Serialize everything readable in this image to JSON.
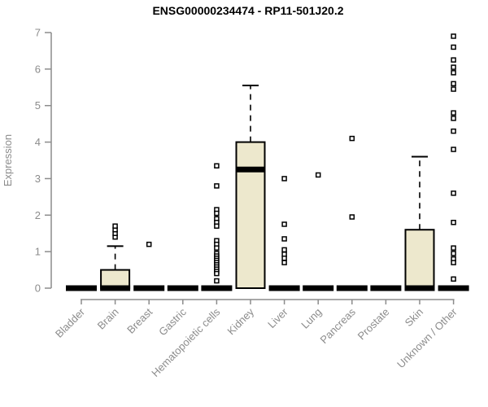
{
  "title": "ENSG00000234474 - RP11-501J20.2",
  "chart_data": {
    "type": "boxplot",
    "title": "ENSG00000234474 - RP11-501J20.2",
    "xlabel": "",
    "ylabel": "Expression",
    "ylim": [
      0,
      7
    ],
    "yticks": [
      0,
      1,
      2,
      3,
      4,
      5,
      6,
      7
    ],
    "grid": false,
    "legend_position": "none",
    "categories": [
      "Bladder",
      "Brain",
      "Breast",
      "Gastric",
      "Hematopoietic cells",
      "Kidney",
      "Liver",
      "Lung",
      "Pancreas",
      "Prostate",
      "Skin",
      "Unknown / Other"
    ],
    "series": [
      {
        "name": "Bladder",
        "q1": 0,
        "median": 0,
        "q3": 0,
        "whisker_low": 0,
        "whisker_high": 0,
        "outliers": []
      },
      {
        "name": "Brain",
        "q1": 0,
        "median": 0,
        "q3": 0.5,
        "whisker_low": 0,
        "whisker_high": 1.15,
        "outliers": [
          1.4,
          1.5,
          1.6,
          1.7
        ]
      },
      {
        "name": "Breast",
        "q1": 0,
        "median": 0,
        "q3": 0,
        "whisker_low": 0,
        "whisker_high": 0,
        "outliers": [
          1.2
        ]
      },
      {
        "name": "Gastric",
        "q1": 0,
        "median": 0,
        "q3": 0,
        "whisker_low": 0,
        "whisker_high": 0,
        "outliers": []
      },
      {
        "name": "Hematopoietic cells",
        "q1": 0,
        "median": 0,
        "q3": 0,
        "whisker_low": 0,
        "whisker_high": 0,
        "outliers": [
          3.35,
          2.8,
          2.15,
          2.05,
          1.9,
          1.8,
          1.7,
          1.3,
          1.2,
          1.1,
          0.95,
          0.88,
          0.82,
          0.76,
          0.7,
          0.64,
          0.58,
          0.52,
          0.46,
          0.4,
          0.2
        ]
      },
      {
        "name": "Kidney",
        "q1": 0,
        "median": 3.25,
        "q3": 4.0,
        "whisker_low": 0,
        "whisker_high": 5.55,
        "outliers": []
      },
      {
        "name": "Liver",
        "q1": 0,
        "median": 0,
        "q3": 0,
        "whisker_low": 0,
        "whisker_high": 0,
        "outliers": [
          3.0,
          1.75,
          1.35,
          1.05,
          0.93,
          0.82,
          0.7
        ]
      },
      {
        "name": "Lung",
        "q1": 0,
        "median": 0,
        "q3": 0,
        "whisker_low": 0,
        "whisker_high": 0,
        "outliers": [
          3.1
        ]
      },
      {
        "name": "Pancreas",
        "q1": 0,
        "median": 0,
        "q3": 0,
        "whisker_low": 0,
        "whisker_high": 0,
        "outliers": [
          4.1,
          1.95
        ]
      },
      {
        "name": "Prostate",
        "q1": 0,
        "median": 0,
        "q3": 0,
        "whisker_low": 0,
        "whisker_high": 0,
        "outliers": []
      },
      {
        "name": "Skin",
        "q1": 0,
        "median": 0,
        "q3": 1.6,
        "whisker_low": 0,
        "whisker_high": 3.6,
        "outliers": []
      },
      {
        "name": "Unknown / Other",
        "q1": 0,
        "median": 0,
        "q3": 0,
        "whisker_low": 0,
        "whisker_high": 0,
        "outliers": [
          6.9,
          6.6,
          6.25,
          6.05,
          5.9,
          5.6,
          5.45,
          4.8,
          4.65,
          4.3,
          3.8,
          2.6,
          1.8,
          1.1,
          0.95,
          0.8,
          0.7,
          0.25
        ]
      }
    ],
    "colors": {
      "box_fill": "#EDE8CD",
      "box_stroke": "#000000",
      "median": "#000000",
      "outlier_stroke": "#000000",
      "axis": "#8C8C8C",
      "title": "#000000",
      "background": "#FFFFFF"
    }
  }
}
